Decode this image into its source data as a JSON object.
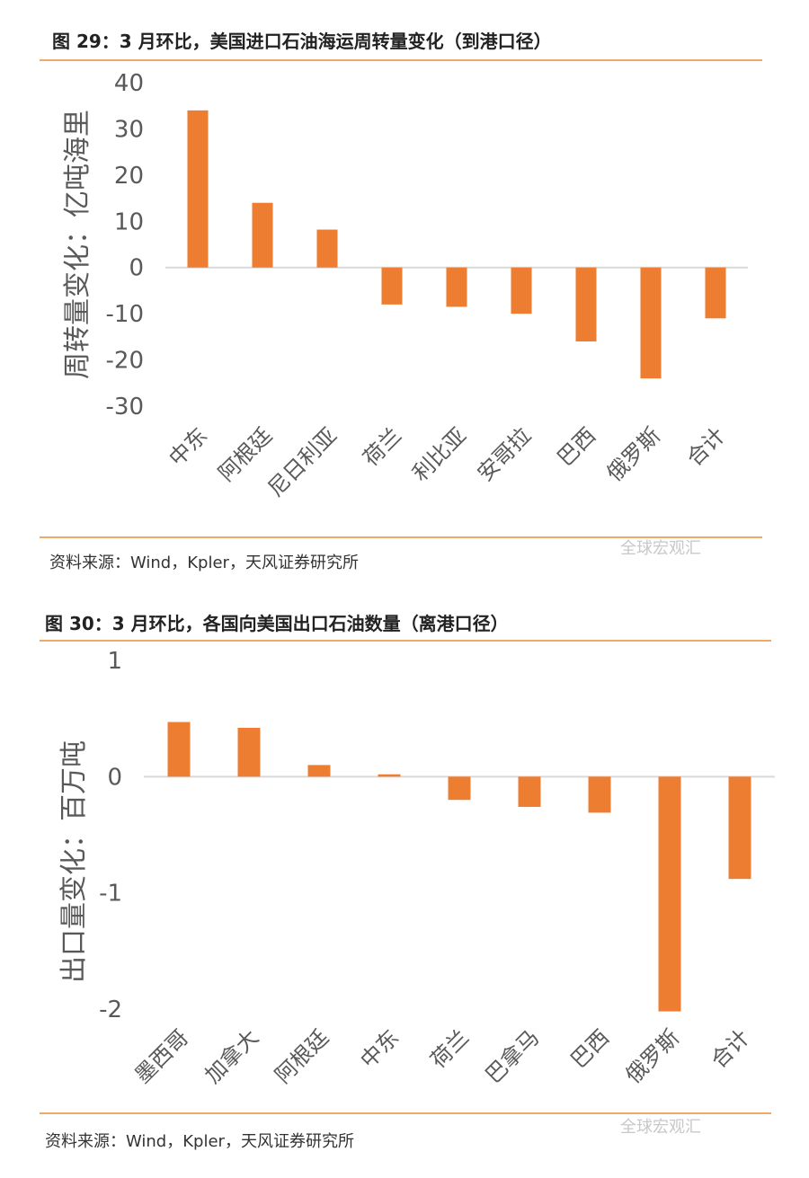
{
  "figures": [
    {
      "title": "图 29：3 月环比，美国进口石油海运周转量变化（到港口径）",
      "source": "资料来源：Wind，Kpler，天风证券研究所",
      "watermark": "全球宏观汇",
      "chart_data": {
        "type": "bar",
        "title": "图 29：3 月环比，美国进口石油海运周转量变化（到港口径）",
        "xlabel": "",
        "ylabel": "周转量变化：亿吨海里",
        "categories": [
          "中东",
          "阿根廷",
          "尼日利亚",
          "荷兰",
          "利比亚",
          "安哥拉",
          "巴西",
          "俄罗斯",
          "合计"
        ],
        "values": [
          34,
          14,
          8.2,
          -8,
          -8.5,
          -10,
          -16,
          -24,
          -11
        ],
        "ylim": [
          -30,
          40
        ],
        "yticks": [
          "40",
          "30",
          "20",
          "10",
          "0",
          "-10",
          "-20",
          "-30"
        ],
        "ytick_values": [
          40,
          30,
          20,
          10,
          0,
          -10,
          -20,
          -30
        ],
        "grid": false,
        "bar_color": "#ED7D31"
      }
    },
    {
      "title": "图 30：3 月环比，各国向美国出口石油数量（离港口径）",
      "source": "资料来源：Wind，Kpler，天风证券研究所",
      "watermark": "全球宏观汇",
      "chart_data": {
        "type": "bar",
        "title": "图 30：3 月环比，各国向美国出口石油数量（离港口径）",
        "xlabel": "",
        "ylabel": "出口量变化：百万吨",
        "categories": [
          "墨西哥",
          "加拿大",
          "阿根廷",
          "中东",
          "荷兰",
          "巴拿马",
          "巴西",
          "俄罗斯",
          "合计"
        ],
        "values": [
          0.47,
          0.42,
          0.1,
          0.02,
          -0.2,
          -0.26,
          -0.31,
          -2.02,
          -0.88
        ],
        "ylim": [
          -2,
          1
        ],
        "yticks": [
          "1",
          "0",
          "-1",
          "-2"
        ],
        "ytick_values": [
          1,
          0,
          -1,
          -2
        ],
        "grid": false,
        "bar_color": "#ED7D31"
      }
    }
  ]
}
